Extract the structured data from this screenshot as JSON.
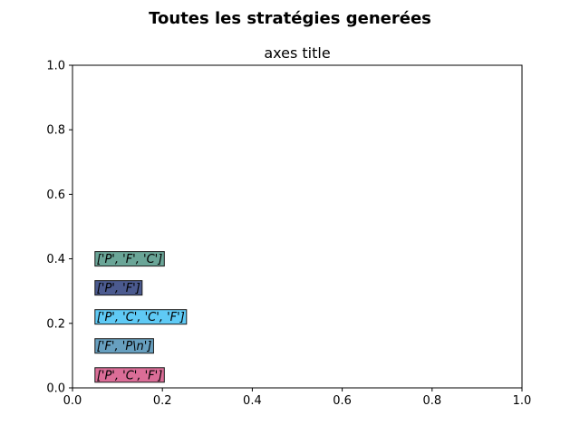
{
  "chart_data": {
    "type": "scatter",
    "suptitle": "Toutes les stratégies generées",
    "title": "axes title",
    "xlabel": "",
    "ylabel": "",
    "xlim": [
      0,
      1
    ],
    "ylim": [
      0,
      1
    ],
    "xticks": [
      "0.0",
      "0.2",
      "0.4",
      "0.6",
      "0.8",
      "1.0"
    ],
    "yticks": [
      "0.0",
      "0.2",
      "0.4",
      "0.6",
      "0.8",
      "1.0"
    ],
    "grid": false,
    "annotations": [
      {
        "text": "['P', 'F', 'C']",
        "x": 0.05,
        "y": 0.4,
        "color": "#6aa597"
      },
      {
        "text": "['P', 'F']",
        "x": 0.05,
        "y": 0.31,
        "color": "#4b5a8f"
      },
      {
        "text": "['P', 'C', 'C', 'F']",
        "x": 0.05,
        "y": 0.22,
        "color": "#5fcaf5"
      },
      {
        "text": "['F', 'P\\n']",
        "x": 0.05,
        "y": 0.13,
        "color": "#679fbf"
      },
      {
        "text": "['P', 'C', 'F']",
        "x": 0.05,
        "y": 0.04,
        "color": "#db6d97"
      }
    ]
  }
}
